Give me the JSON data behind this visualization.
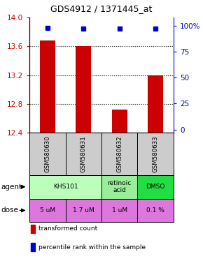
{
  "title": "GDS4912 / 1371445_at",
  "samples": [
    "GSM580630",
    "GSM580631",
    "GSM580632",
    "GSM580633"
  ],
  "bar_values": [
    13.68,
    13.6,
    12.72,
    13.2
  ],
  "percentile_values": [
    98,
    97,
    97,
    97
  ],
  "ymin": 12.4,
  "ymax": 14.0,
  "yticks": [
    12.4,
    12.8,
    13.2,
    13.6,
    14.0
  ],
  "y2ticks": [
    0,
    25,
    50,
    75,
    100
  ],
  "y2labels": [
    "0",
    "25",
    "50",
    "75",
    "100%"
  ],
  "bar_color": "#cc0000",
  "percentile_color": "#0000cc",
  "agent_groups": [
    {
      "cols": [
        0,
        1
      ],
      "label": "KHS101",
      "color": "#bbffbb"
    },
    {
      "cols": [
        2
      ],
      "label": "retinoic\nacid",
      "color": "#99ee99"
    },
    {
      "cols": [
        3
      ],
      "label": "DMSO",
      "color": "#22dd44"
    }
  ],
  "dose_row": [
    "5 uM",
    "1.7 uM",
    "1 uM",
    "0.1 %"
  ],
  "dose_color": "#dd77dd",
  "sample_bg": "#cccccc",
  "legend_items": [
    {
      "color": "#cc0000",
      "label": "transformed count"
    },
    {
      "color": "#0000cc",
      "label": "percentile rank within the sample"
    }
  ]
}
